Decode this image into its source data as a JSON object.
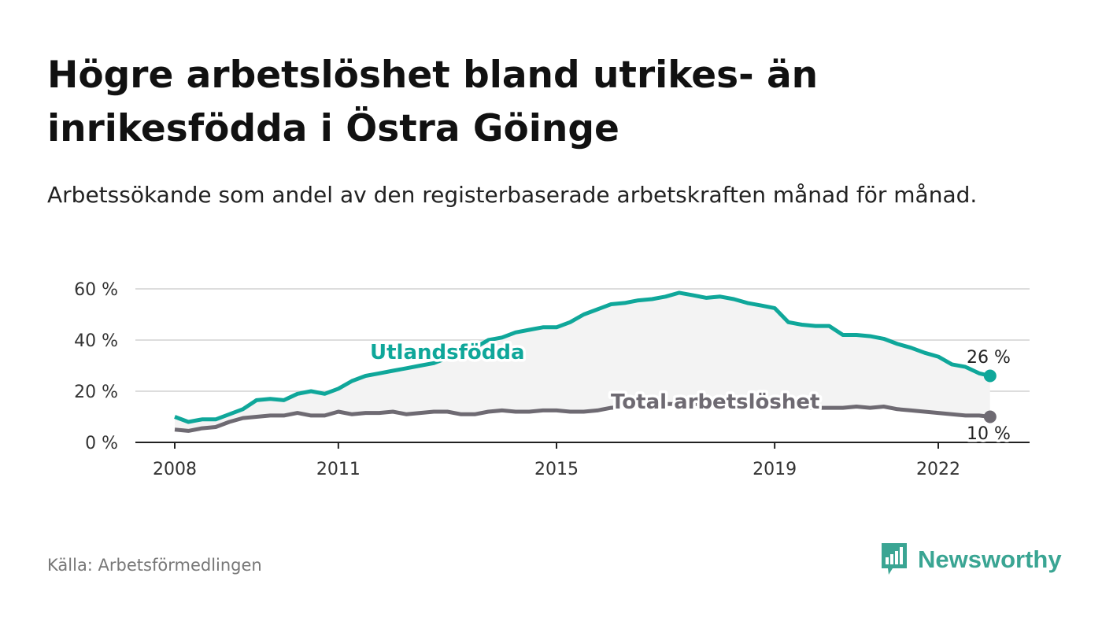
{
  "title": "Högre arbetslöshet bland utrikes- än inrikesfödda i Östra Göinge",
  "subtitle": "Arbetssökande som andel av den registerbaserade arbetskraften månad för månad.",
  "source": "Källa: Arbetsförmedlingen",
  "brand": {
    "name": "Newsworthy",
    "icon": "newsworthy-logo-icon"
  },
  "colors": {
    "utlandsfodda": "#0fa79a",
    "total": "#6e6a72",
    "grid": "#dddddd",
    "axis": "#222222"
  },
  "chart_data": {
    "type": "line",
    "title": "Högre arbetslöshet bland utrikes- än inrikesfödda i Östra Göinge",
    "xlabel": "",
    "ylabel": "",
    "xlim": [
      2008,
      2023
    ],
    "ylim": [
      0,
      60
    ],
    "x_ticks": [
      2008,
      2011,
      2015,
      2019,
      2022
    ],
    "y_ticks": [
      0,
      20,
      40,
      60
    ],
    "y_tick_labels": [
      "0 %",
      "20 %",
      "40 %",
      "60 %"
    ],
    "area_between_series": true,
    "series": [
      {
        "name": "Utlandsfödda",
        "label": "Utlandsfödda",
        "end_label": "26 %",
        "points": [
          [
            2008.0,
            10
          ],
          [
            2008.25,
            8
          ],
          [
            2008.5,
            9
          ],
          [
            2008.75,
            9
          ],
          [
            2009.0,
            11
          ],
          [
            2009.25,
            13
          ],
          [
            2009.5,
            16.5
          ],
          [
            2009.75,
            17
          ],
          [
            2010.0,
            16.5
          ],
          [
            2010.25,
            19
          ],
          [
            2010.5,
            20
          ],
          [
            2010.75,
            19
          ],
          [
            2011.0,
            21
          ],
          [
            2011.25,
            24
          ],
          [
            2011.5,
            26
          ],
          [
            2011.75,
            27
          ],
          [
            2012.0,
            28
          ],
          [
            2012.25,
            29
          ],
          [
            2012.5,
            30
          ],
          [
            2012.75,
            31
          ],
          [
            2013.0,
            33
          ],
          [
            2013.25,
            35
          ],
          [
            2013.5,
            37
          ],
          [
            2013.75,
            40
          ],
          [
            2014.0,
            41
          ],
          [
            2014.25,
            43
          ],
          [
            2014.5,
            44
          ],
          [
            2014.75,
            45
          ],
          [
            2015.0,
            45
          ],
          [
            2015.25,
            47
          ],
          [
            2015.5,
            50
          ],
          [
            2015.75,
            52
          ],
          [
            2016.0,
            54
          ],
          [
            2016.25,
            54.5
          ],
          [
            2016.5,
            55.5
          ],
          [
            2016.75,
            56
          ],
          [
            2017.0,
            57
          ],
          [
            2017.25,
            58.5
          ],
          [
            2017.5,
            57.5
          ],
          [
            2017.75,
            56.5
          ],
          [
            2018.0,
            57
          ],
          [
            2018.25,
            56
          ],
          [
            2018.5,
            54.5
          ],
          [
            2018.75,
            53.5
          ],
          [
            2019.0,
            52.5
          ],
          [
            2019.25,
            47
          ],
          [
            2019.5,
            46
          ],
          [
            2019.75,
            45.5
          ],
          [
            2020.0,
            45.5
          ],
          [
            2020.25,
            42
          ],
          [
            2020.5,
            42
          ],
          [
            2020.75,
            41.5
          ],
          [
            2021.0,
            40.5
          ],
          [
            2021.25,
            38.5
          ],
          [
            2021.5,
            37
          ],
          [
            2021.75,
            35
          ],
          [
            2022.0,
            33.5
          ],
          [
            2022.25,
            30.5
          ],
          [
            2022.5,
            29.5
          ],
          [
            2022.75,
            27
          ],
          [
            2022.95,
            26
          ]
        ]
      },
      {
        "name": "Total arbetslöshet",
        "label": "Total arbetslöshet",
        "end_label": "10 %",
        "points": [
          [
            2008.0,
            5
          ],
          [
            2008.25,
            4.5
          ],
          [
            2008.5,
            5.5
          ],
          [
            2008.75,
            6
          ],
          [
            2009.0,
            8
          ],
          [
            2009.25,
            9.5
          ],
          [
            2009.5,
            10
          ],
          [
            2009.75,
            10.5
          ],
          [
            2010.0,
            10.5
          ],
          [
            2010.25,
            11.5
          ],
          [
            2010.5,
            10.5
          ],
          [
            2010.75,
            10.5
          ],
          [
            2011.0,
            12
          ],
          [
            2011.25,
            11
          ],
          [
            2011.5,
            11.5
          ],
          [
            2011.75,
            11.5
          ],
          [
            2012.0,
            12
          ],
          [
            2012.25,
            11
          ],
          [
            2012.5,
            11.5
          ],
          [
            2012.75,
            12
          ],
          [
            2013.0,
            12
          ],
          [
            2013.25,
            11
          ],
          [
            2013.5,
            11
          ],
          [
            2013.75,
            12
          ],
          [
            2014.0,
            12.5
          ],
          [
            2014.25,
            12
          ],
          [
            2014.5,
            12
          ],
          [
            2014.75,
            12.5
          ],
          [
            2015.0,
            12.5
          ],
          [
            2015.25,
            12
          ],
          [
            2015.5,
            12
          ],
          [
            2015.75,
            12.5
          ],
          [
            2016.0,
            13.5
          ],
          [
            2016.25,
            14
          ],
          [
            2016.5,
            14.5
          ],
          [
            2016.75,
            15
          ],
          [
            2017.0,
            15
          ],
          [
            2017.25,
            15
          ],
          [
            2017.5,
            15
          ],
          [
            2017.75,
            15
          ],
          [
            2018.0,
            15
          ],
          [
            2018.25,
            15
          ],
          [
            2018.5,
            14.5
          ],
          [
            2018.75,
            14.5
          ],
          [
            2019.0,
            14
          ],
          [
            2019.25,
            14
          ],
          [
            2019.5,
            13.5
          ],
          [
            2019.75,
            13.5
          ],
          [
            2020.0,
            13.5
          ],
          [
            2020.25,
            13.5
          ],
          [
            2020.5,
            14
          ],
          [
            2020.75,
            13.5
          ],
          [
            2021.0,
            14
          ],
          [
            2021.25,
            13
          ],
          [
            2021.5,
            12.5
          ],
          [
            2021.75,
            12
          ],
          [
            2022.0,
            11.5
          ],
          [
            2022.25,
            11
          ],
          [
            2022.5,
            10.5
          ],
          [
            2022.75,
            10.5
          ],
          [
            2022.95,
            10
          ]
        ]
      }
    ]
  }
}
